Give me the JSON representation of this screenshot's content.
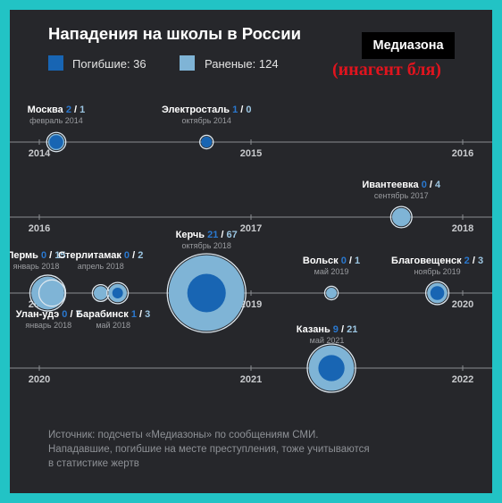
{
  "title": "Нападения на школы в России",
  "brand": "Медиазона",
  "stamp_text": "(инагент бля)",
  "legend": {
    "killed_label": "Погибшие: 36",
    "injured_label": "Раненые: 124"
  },
  "colors": {
    "background": "#26272b",
    "frame": "#22c3c5",
    "killed": "#1865b3",
    "injured": "#7fb4d6",
    "axis": "#8a8c90",
    "text": "#ffffff",
    "muted": "#9a9ca0",
    "stamp": "#e0141e"
  },
  "chart_data": {
    "type": "scatter",
    "title": "Нападения на школы в России",
    "series": [
      {
        "name": "Погибшие",
        "color": "#1865b3"
      },
      {
        "name": "Раненые",
        "color": "#7fb4d6"
      }
    ],
    "timeline_rows": [
      {
        "start": "2014",
        "mid": "2015",
        "end": "2016"
      },
      {
        "start": "2016",
        "mid": "2017",
        "end": "2018"
      },
      {
        "start": "2018",
        "mid": "2019",
        "end": "2020"
      },
      {
        "start": "2020",
        "mid": "2021",
        "end": "2022"
      }
    ],
    "events": [
      {
        "city": "Москва",
        "killed": 2,
        "injured": 1,
        "date": "февраль 2014",
        "row": 0,
        "t": 2014.08
      },
      {
        "city": "Электросталь",
        "killed": 1,
        "injured": 0,
        "date": "октябрь 2014",
        "row": 0,
        "t": 2014.79
      },
      {
        "city": "Ивантеевка",
        "killed": 0,
        "injured": 4,
        "date": "сентябрь 2017",
        "row": 1,
        "t": 2017.71
      },
      {
        "city": "Пермь",
        "killed": 0,
        "injured": 15,
        "date": "январь 2018",
        "row": 2,
        "t": 2018.04
      },
      {
        "city": "Улан-удэ",
        "killed": 0,
        "injured": 7,
        "date": "январь 2018",
        "row": 2,
        "t": 2018.06
      },
      {
        "city": "Стерлитамак",
        "killed": 0,
        "injured": 2,
        "date": "апрель 2018",
        "row": 2,
        "t": 2018.29
      },
      {
        "city": "Барабинск",
        "killed": 1,
        "injured": 3,
        "date": "май 2018",
        "row": 2,
        "t": 2018.37
      },
      {
        "city": "Керчь",
        "killed": 21,
        "injured": 67,
        "date": "октябрь 2018",
        "row": 2,
        "t": 2018.79
      },
      {
        "city": "Вольск",
        "killed": 0,
        "injured": 1,
        "date": "май 2019",
        "row": 2,
        "t": 2019.38
      },
      {
        "city": "Благовещенск",
        "killed": 2,
        "injured": 3,
        "date": "ноябрь 2019",
        "row": 2,
        "t": 2019.88
      },
      {
        "city": "Казань",
        "killed": 9,
        "injured": 21,
        "date": "май 2021",
        "row": 3,
        "t": 2021.38
      }
    ]
  },
  "footnote": [
    "Источник: подсчеты «Медиазоны» по сообщениям СМИ.",
    "Нападавшие, погибшие на месте преступления, тоже учитываются",
    "в статистике жертв"
  ]
}
